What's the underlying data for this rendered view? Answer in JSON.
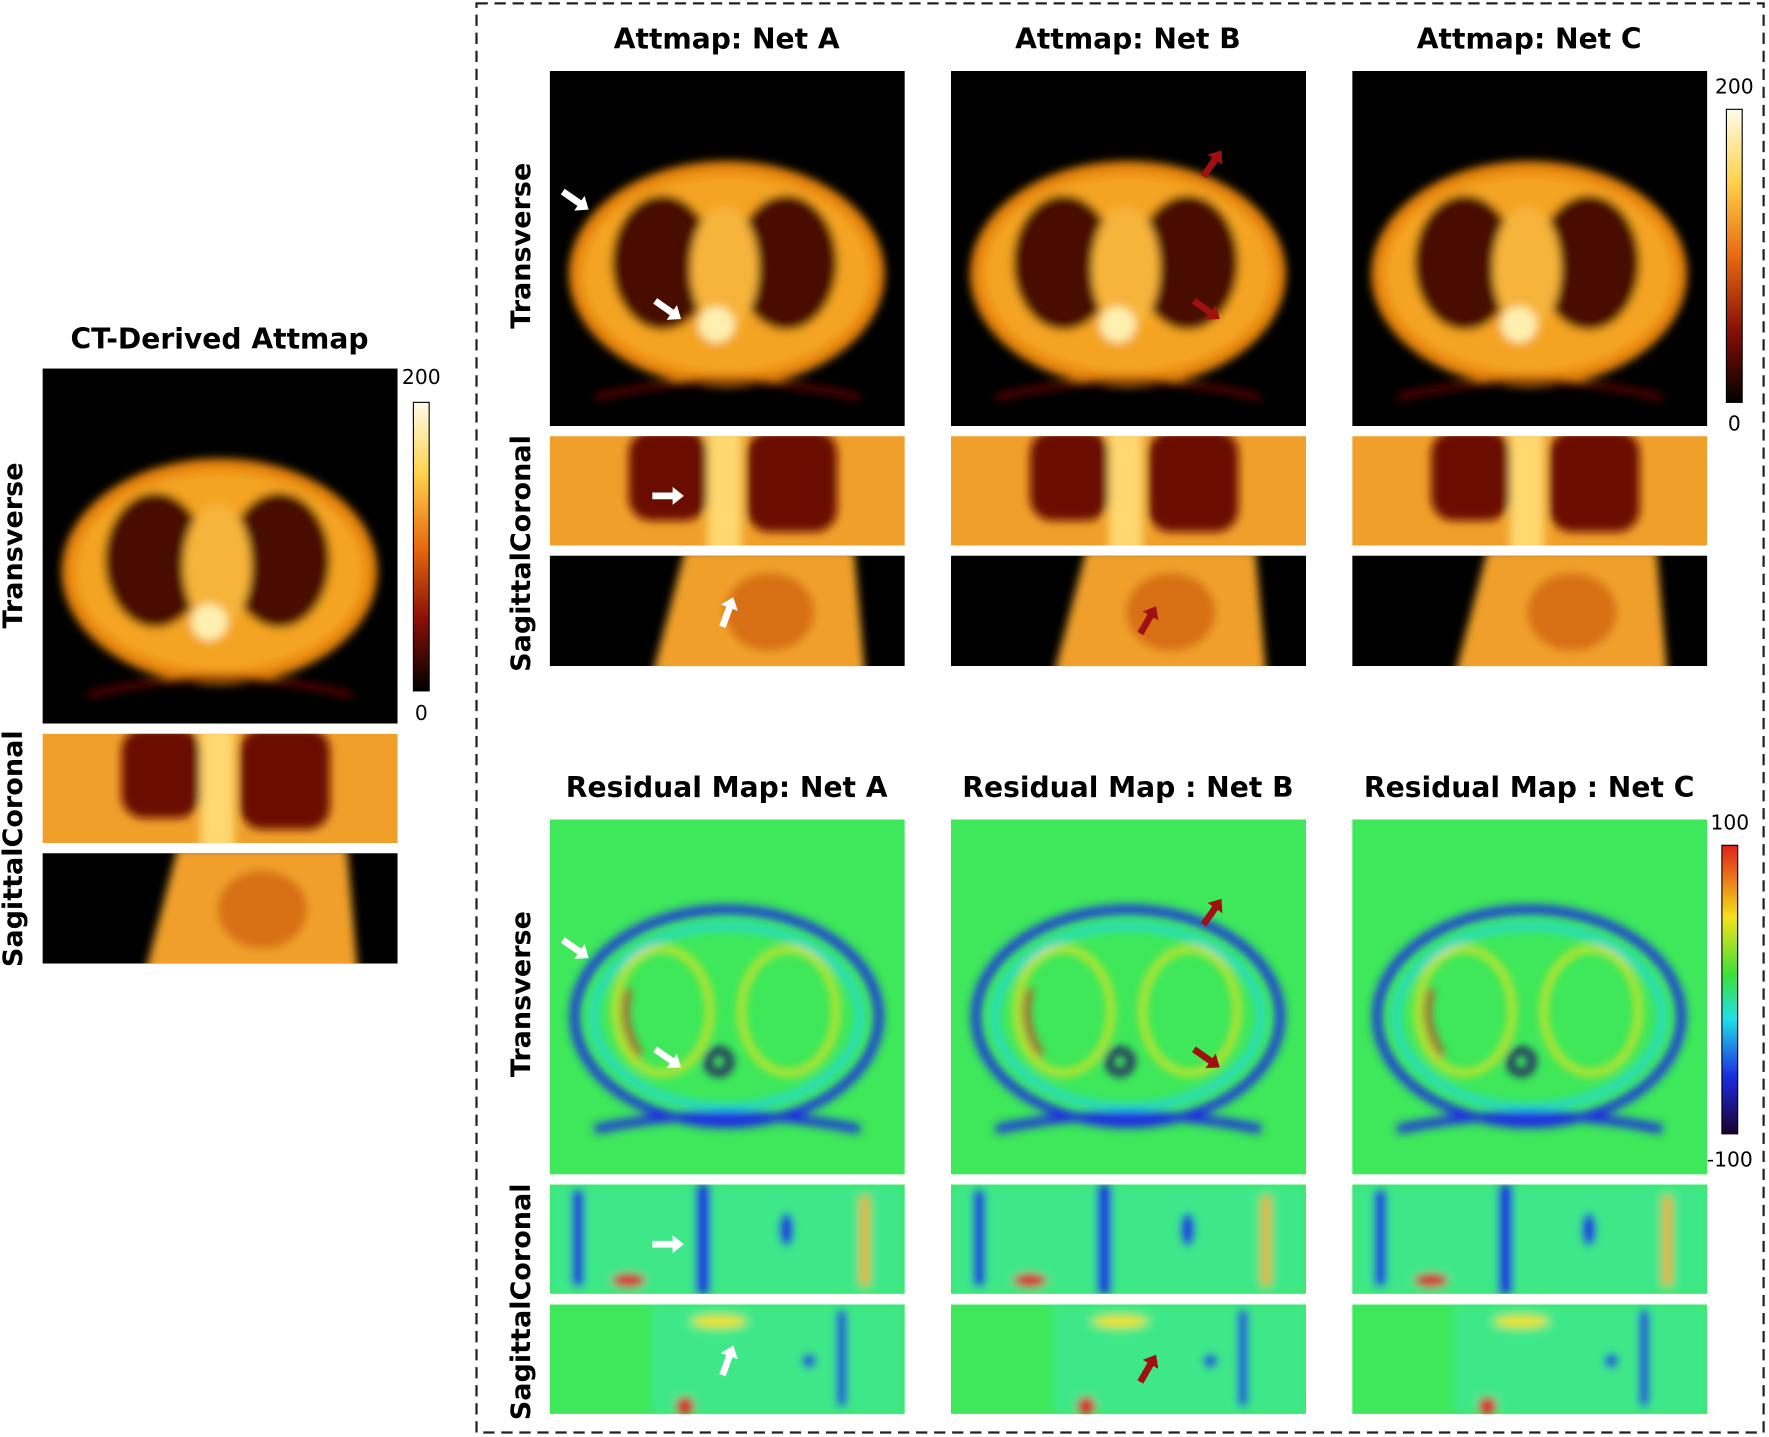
{
  "left": {
    "title": "CT-Derived Attmap",
    "row_labels": [
      "Transverse",
      "Coronal",
      "Sagittal"
    ],
    "colorbar": {
      "max": 200,
      "min": 0
    }
  },
  "attmap": {
    "titles": [
      "Attmap: Net A",
      "Attmap: Net B",
      "Attmap: Net C"
    ],
    "row_labels": [
      "Transverse",
      "Coronal",
      "Sagittal"
    ],
    "colorbar": {
      "max": 200,
      "min": 0
    }
  },
  "residual": {
    "titles": [
      "Residual Map: Net A",
      "Residual Map : Net B",
      "Residual Map : Net C"
    ],
    "row_labels": [
      "Transverse",
      "Coronal",
      "Sagittal"
    ],
    "colorbar": {
      "max": 100,
      "min": -100
    }
  }
}
